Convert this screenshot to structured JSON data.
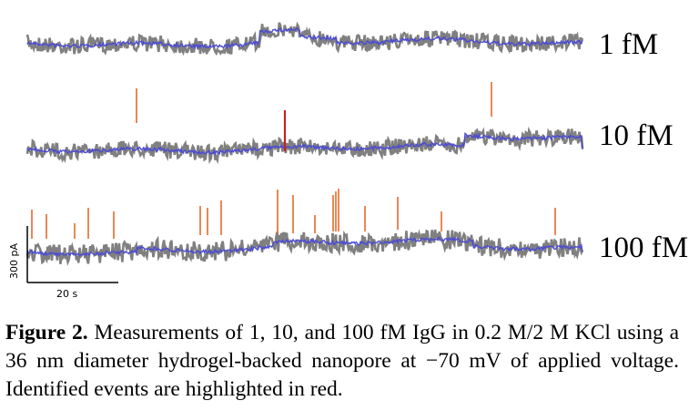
{
  "figure": {
    "labels": {
      "trace1": "1 fM",
      "trace2": "10 fM",
      "trace3": "100 fM"
    },
    "scale_bar": {
      "y_label": "300 pA",
      "x_label": "20 s"
    },
    "caption": {
      "figure_label": "Figure 2.",
      "text": "Measurements of 1, 10, and 100 fM IgG in 0.2 M/2 M KCl using a 36 nm diameter hydrogel-backed nanopore at −70 mV of applied voltage. Identified events are highlighted in red."
    },
    "colors": {
      "raw_trace": "#808080",
      "filtered_trace": "#4a4ad6",
      "events_orange": "#e8692a",
      "event_red": "#cc1f1f"
    }
  }
}
